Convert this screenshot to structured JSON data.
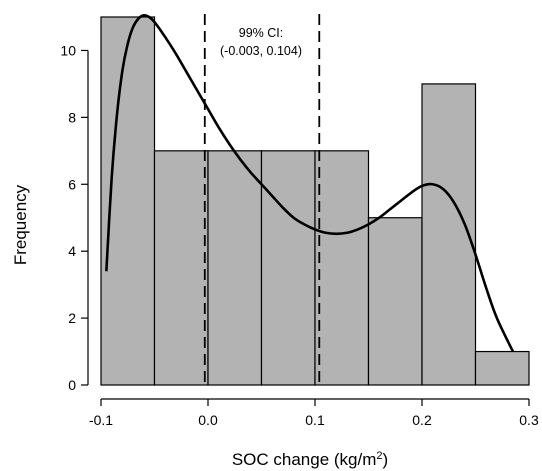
{
  "chart_data": {
    "type": "bar",
    "title": "",
    "xlabel": "SOC change (kg/m",
    "xlabel_sup": "2",
    "xlabel_close": ")",
    "ylabel": "Frequency",
    "xlim": [
      -0.1,
      0.3
    ],
    "ylim": [
      0,
      11
    ],
    "x_ticks": [
      -0.1,
      0.0,
      0.1,
      0.2,
      0.3
    ],
    "x_tick_labels": [
      "-0.1",
      "0.0",
      "0.1",
      "0.2",
      "0.3"
    ],
    "y_ticks": [
      0,
      2,
      4,
      6,
      8,
      10
    ],
    "y_tick_labels": [
      "0",
      "2",
      "4",
      "6",
      "8",
      "10"
    ],
    "grid": false,
    "bins": [
      {
        "start": -0.1,
        "end": -0.05,
        "count": 11
      },
      {
        "start": -0.05,
        "end": 0.0,
        "count": 7
      },
      {
        "start": 0.0,
        "end": 0.05,
        "count": 7
      },
      {
        "start": 0.05,
        "end": 0.1,
        "count": 7
      },
      {
        "start": 0.1,
        "end": 0.15,
        "count": 7
      },
      {
        "start": 0.15,
        "end": 0.2,
        "count": 5
      },
      {
        "start": 0.2,
        "end": 0.25,
        "count": 9
      },
      {
        "start": 0.25,
        "end": 0.3,
        "count": 1
      }
    ],
    "density_curve": {
      "x": [
        -0.095,
        -0.09,
        -0.085,
        -0.08,
        -0.075,
        -0.07,
        -0.065,
        -0.06,
        -0.055,
        -0.05,
        -0.04,
        -0.03,
        -0.02,
        -0.01,
        0.0,
        0.01,
        0.02,
        0.03,
        0.04,
        0.05,
        0.06,
        0.07,
        0.08,
        0.09,
        0.1,
        0.11,
        0.12,
        0.13,
        0.14,
        0.15,
        0.16,
        0.17,
        0.18,
        0.19,
        0.2,
        0.21,
        0.22,
        0.23,
        0.24,
        0.25,
        0.26,
        0.27,
        0.285
      ],
      "y": [
        3.4,
        6.2,
        8.1,
        9.4,
        10.2,
        10.7,
        10.95,
        11.05,
        11.0,
        10.85,
        10.4,
        9.9,
        9.35,
        8.8,
        8.25,
        7.7,
        7.2,
        6.75,
        6.35,
        6.0,
        5.65,
        5.3,
        5.0,
        4.8,
        4.65,
        4.55,
        4.52,
        4.55,
        4.65,
        4.8,
        5.0,
        5.25,
        5.5,
        5.75,
        5.95,
        6.0,
        5.85,
        5.45,
        4.8,
        3.9,
        2.9,
        2.0,
        1.0
      ]
    },
    "ci_lines": [
      -0.003,
      0.104
    ],
    "ci_label_line1": "99% CI:",
    "ci_label_line2": "(-0.003, 0.104)",
    "colors": {
      "bar_fill": "#b3b3b3",
      "bar_stroke": "#000000",
      "curve": "#000000"
    }
  }
}
